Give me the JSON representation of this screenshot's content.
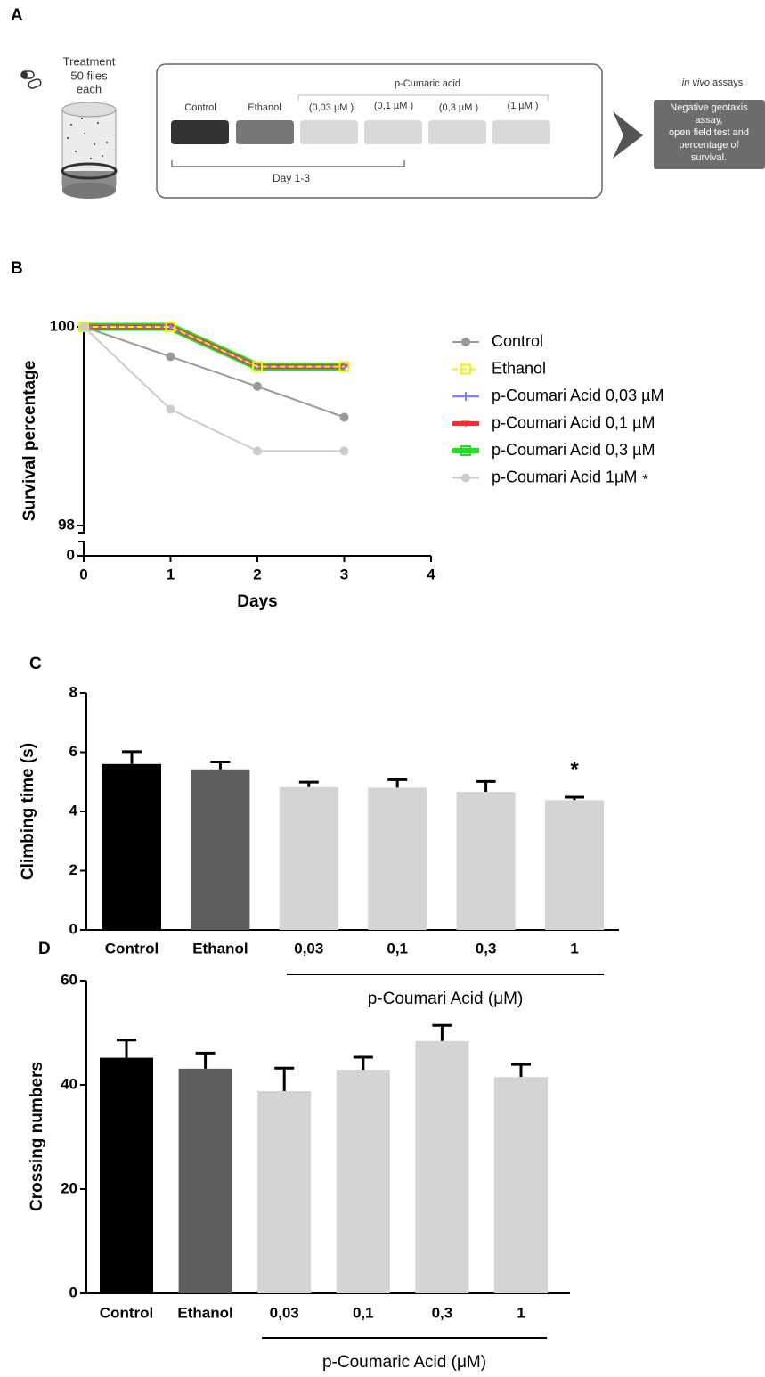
{
  "diagram": {
    "panel_label": "A",
    "treatment_lines": [
      "Treatment",
      "50 files",
      "each"
    ],
    "group_label": "p-Cumaric acid",
    "columns": [
      "Control",
      "Ethanol",
      "(0,03 µM )",
      "(0,1 µM )",
      "(0,3 µM )",
      "(1 µM )"
    ],
    "period_label": "Day 1-3",
    "assays_label_italic": "in vivo",
    "assays_label": "assays",
    "assays_box_lines": [
      "Negative geotaxis",
      "assay,",
      "open field test and",
      "percentage of",
      "survival."
    ]
  },
  "chart_data": [
    {
      "type": "line",
      "panel_label": "B",
      "x_label": "Days",
      "y_label": "Survival percentage",
      "x": [
        0,
        1,
        2,
        3
      ],
      "xlim": [
        0,
        4
      ],
      "xticks": [
        0,
        1,
        2,
        3,
        4
      ],
      "ylim": [
        98,
        100
      ],
      "yticks": [
        0,
        98,
        100
      ],
      "broken_axis": true,
      "grid": false,
      "legend": "right",
      "annotation": "*",
      "series": [
        {
          "name": "Control",
          "color": "#999999",
          "marker": "circle",
          "width": 2,
          "dashed": false,
          "values": [
            100,
            99.7,
            99.4,
            99.09
          ]
        },
        {
          "name": "Ethanol",
          "color": "#f2f200",
          "marker": "square",
          "width": 2,
          "dashed": true,
          "values": [
            100,
            100,
            99.6,
            99.6
          ]
        },
        {
          "name": "p-Coumari Acid 0,03 µM",
          "color": "#8080ff",
          "marker": "star",
          "width": 2.5,
          "dashed": false,
          "values": [
            100,
            100,
            99.6,
            99.6
          ]
        },
        {
          "name": "p-Coumari Acid 0,1 µM",
          "color": "#ff2a2a",
          "marker": "triangle",
          "width": 5,
          "dashed": false,
          "values": [
            100,
            100,
            99.6,
            99.6
          ]
        },
        {
          "name": "p-Coumari Acid 0,3 µM",
          "color": "#19e619",
          "marker": "square",
          "width": 9,
          "dashed": false,
          "values": [
            100,
            100,
            99.6,
            99.6
          ]
        },
        {
          "name": "p-Coumari Acid 1µM",
          "color": "#cccccc",
          "marker": "circle",
          "width": 2,
          "dashed": false,
          "values": [
            100,
            99.17,
            98.75,
            98.75
          ]
        }
      ]
    },
    {
      "type": "bar",
      "panel_label": "C",
      "y_label": "Climbing time (s)",
      "categories": [
        "Control",
        "Ethanol",
        "0,03",
        "0,1",
        "0,3",
        "1"
      ],
      "values": [
        5.6,
        5.42,
        4.82,
        4.8,
        4.66,
        4.38
      ],
      "errors": [
        0.42,
        0.25,
        0.17,
        0.27,
        0.35,
        0.1
      ],
      "colors": [
        "#000000",
        "#5e5e5e",
        "#d4d4d4",
        "#d4d4d4",
        "#d4d4d4",
        "#d4d4d4"
      ],
      "ylim": [
        0,
        8
      ],
      "yticks": [
        0,
        2,
        4,
        6,
        8
      ],
      "grid": false,
      "group_label": "p-Coumari Acid (μM)",
      "annotation": "*"
    },
    {
      "type": "bar",
      "panel_label": "D",
      "y_label": "Crossing numbers",
      "categories": [
        "Control",
        "Ethanol",
        "0,03",
        "0,1",
        "0,3",
        "1"
      ],
      "values": [
        45.2,
        43.1,
        38.8,
        42.9,
        48.4,
        41.5
      ],
      "errors": [
        3.4,
        3,
        4.4,
        2.4,
        3,
        2.4
      ],
      "colors": [
        "#000000",
        "#5e5e5e",
        "#d4d4d4",
        "#d4d4d4",
        "#d4d4d4",
        "#d4d4d4"
      ],
      "ylim": [
        0,
        60
      ],
      "yticks": [
        0,
        20,
        40,
        60
      ],
      "grid": false,
      "group_label": "p-Coumaric Acid (μM)"
    }
  ]
}
